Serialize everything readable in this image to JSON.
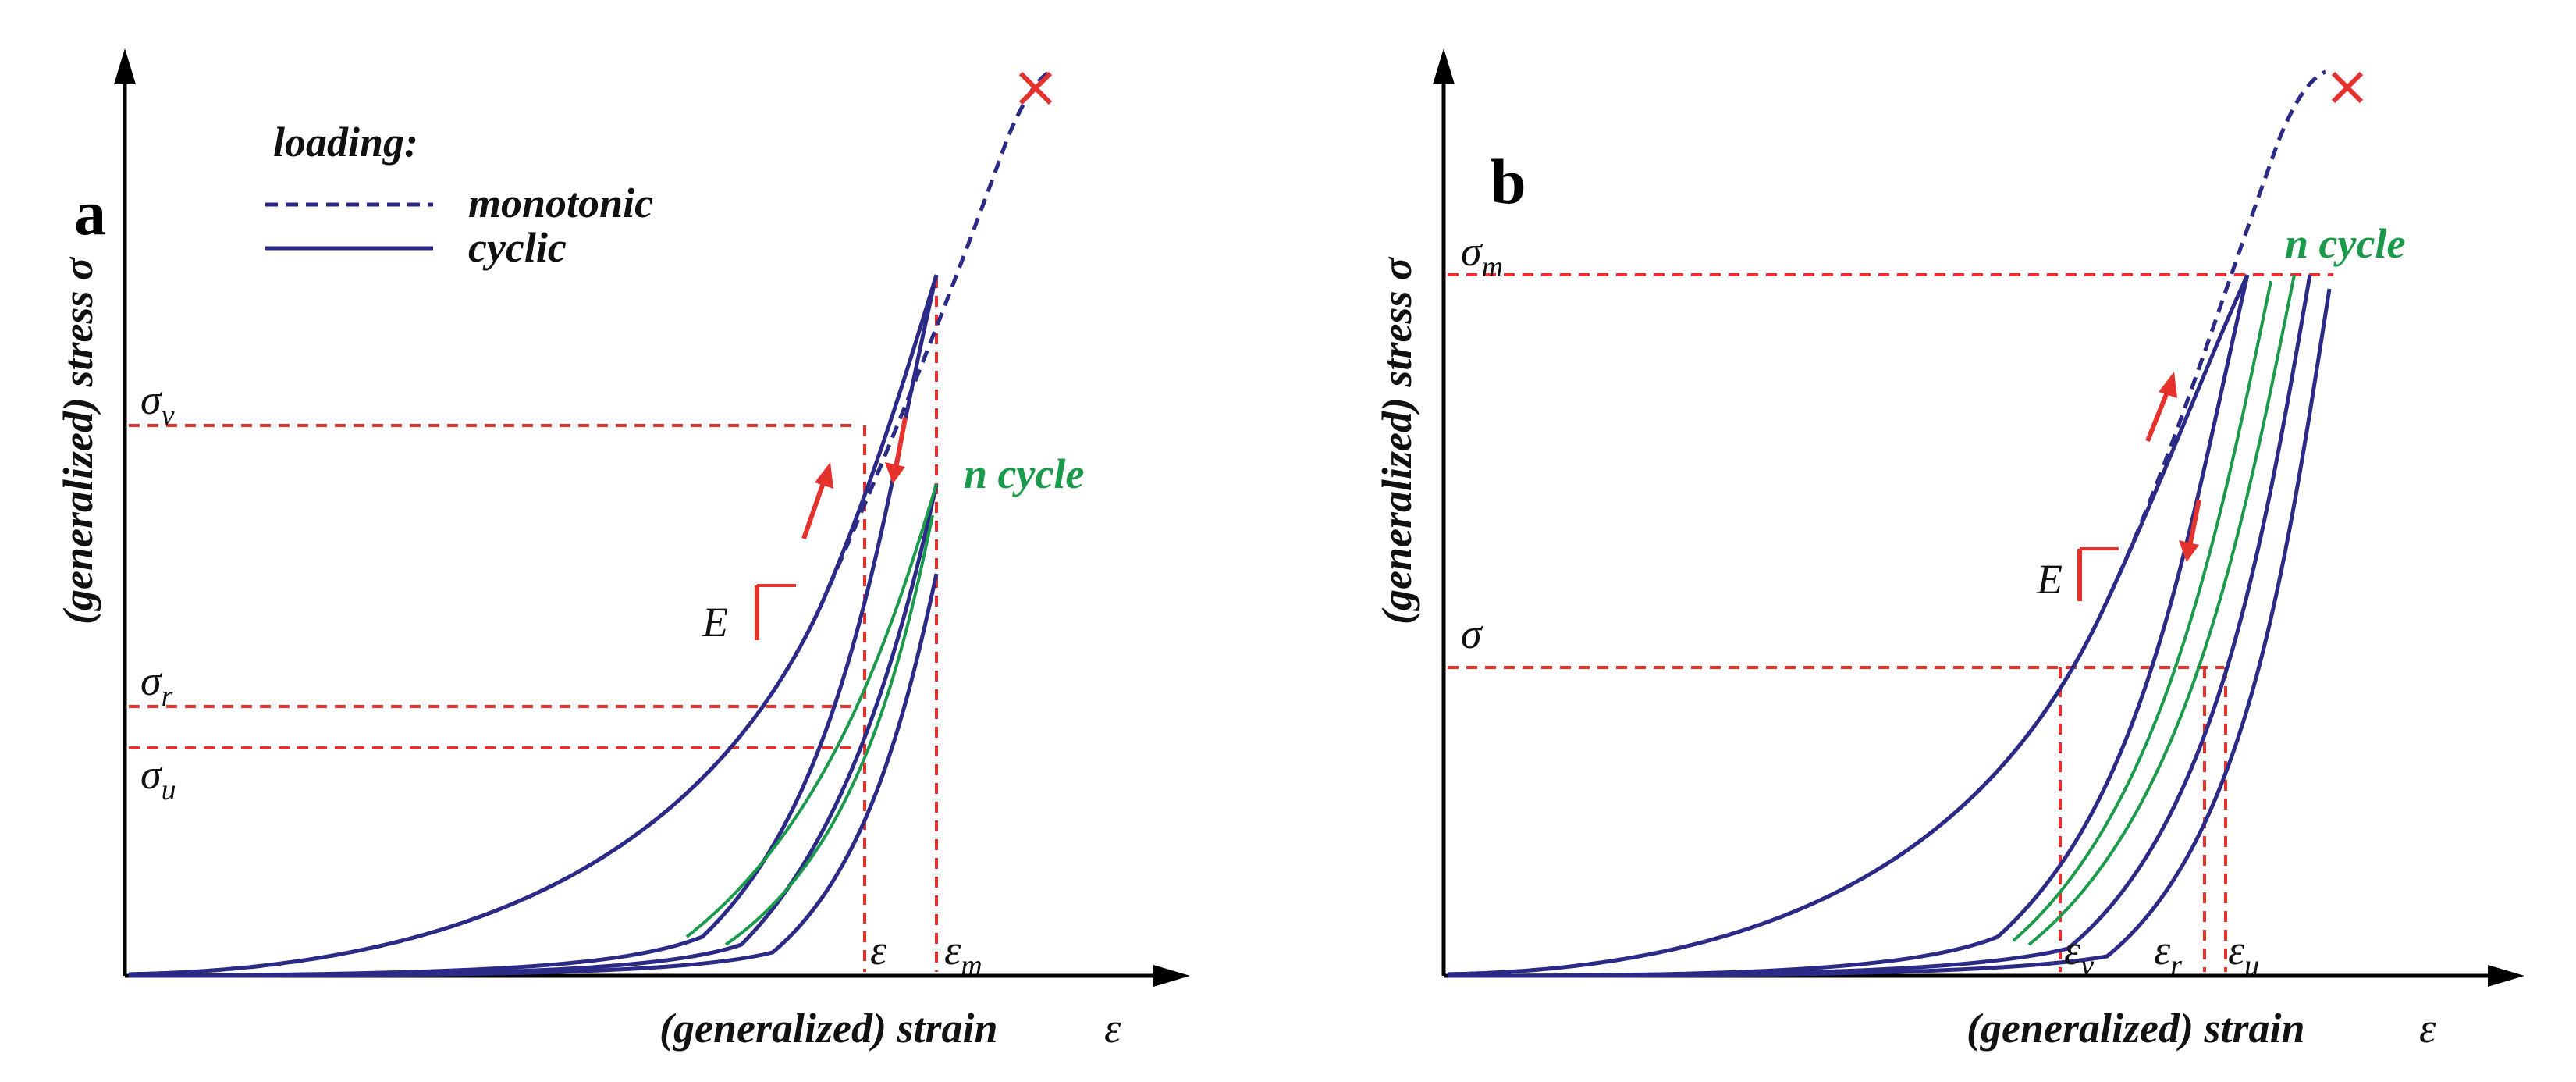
{
  "legend": {
    "title": "loading:",
    "monotonic": "monotonic",
    "cyclic": "cyclic"
  },
  "panel_a": {
    "label": "a",
    "ylabel": "(generalized) stress σ",
    "xlabel": "(generalized) strain",
    "xsymbol": "ε",
    "sigma": "σ",
    "sub_v": "v",
    "sub_r": "r",
    "sub_u": "u",
    "eps": "ε",
    "sub_m": "m",
    "E": "E",
    "n_cycle": "n cycle"
  },
  "panel_b": {
    "label": "b",
    "ylabel": "(generalized) stress σ",
    "xlabel": "(generalized) strain",
    "xsymbol": "ε",
    "sigma": "σ",
    "sub_m": "m",
    "eps": "ε",
    "sub_v": "v",
    "sub_r": "r",
    "sub_u": "u",
    "E": "E",
    "n_cycle": "n cycle"
  },
  "colors": {
    "curve": "#2b2a86",
    "guide": "#e5322d",
    "n_cycle": "#1a9a4a"
  }
}
